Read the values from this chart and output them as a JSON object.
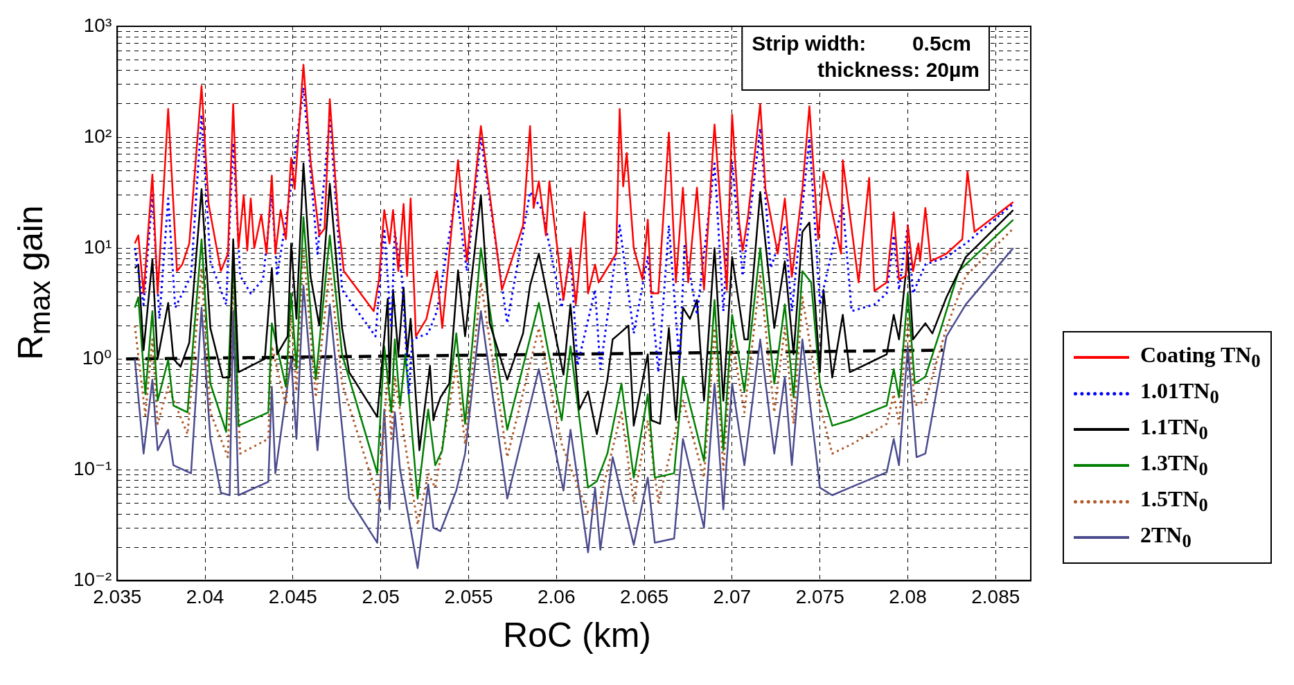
{
  "chart_data": {
    "type": "line",
    "xlabel": "RoC (km)",
    "ylabel": "R$_{max}$ gain",
    "log": "y",
    "grid": true,
    "legend": "right",
    "annotations": [
      "Strip width:        0.5cm",
      "thickness: 20µm"
    ],
    "xlim": [
      2.035,
      2.087
    ],
    "xticks": [
      2.035,
      2.04,
      2.045,
      2.05,
      2.055,
      2.06,
      2.065,
      2.07,
      2.075,
      2.08,
      2.085
    ],
    "ylim": [
      0.01,
      1000
    ],
    "yticks": [
      {
        "value": 0.01,
        "label": "10⁻²"
      },
      {
        "value": 0.02,
        "label": null
      },
      {
        "value": 0.03,
        "label": null
      },
      {
        "value": 0.04,
        "label": null
      },
      {
        "value": 0.05,
        "label": null
      },
      {
        "value": 0.06,
        "label": null
      },
      {
        "value": 0.07,
        "label": null
      },
      {
        "value": 0.08,
        "label": null
      },
      {
        "value": 0.09,
        "label": null
      },
      {
        "value": 0.1,
        "label": "10⁻¹"
      },
      {
        "value": 0.2,
        "label": null
      },
      {
        "value": 0.3,
        "label": null
      },
      {
        "value": 0.4,
        "label": null
      },
      {
        "value": 0.5,
        "label": null
      },
      {
        "value": 0.6,
        "label": null
      },
      {
        "value": 0.7,
        "label": null
      },
      {
        "value": 0.8,
        "label": null
      },
      {
        "value": 0.9,
        "label": null
      },
      {
        "value": 1,
        "label": "10⁰"
      },
      {
        "value": 2,
        "label": null
      },
      {
        "value": 3,
        "label": null
      },
      {
        "value": 4,
        "label": null
      },
      {
        "value": 5,
        "label": null
      },
      {
        "value": 6,
        "label": null
      },
      {
        "value": 7,
        "label": null
      },
      {
        "value": 8,
        "label": null
      },
      {
        "value": 9,
        "label": null
      },
      {
        "value": 10,
        "label": "10¹"
      },
      {
        "value": 20,
        "label": null
      },
      {
        "value": 30,
        "label": null
      },
      {
        "value": 40,
        "label": null
      },
      {
        "value": 50,
        "label": null
      },
      {
        "value": 60,
        "label": null
      },
      {
        "value": 70,
        "label": null
      },
      {
        "value": 80,
        "label": null
      },
      {
        "value": 90,
        "label": null
      },
      {
        "value": 100,
        "label": "10²"
      },
      {
        "value": 200,
        "label": null
      },
      {
        "value": 300,
        "label": null
      },
      {
        "value": 400,
        "label": null
      },
      {
        "value": 500,
        "label": null
      },
      {
        "value": 600,
        "label": null
      },
      {
        "value": 700,
        "label": null
      },
      {
        "value": 800,
        "label": null
      },
      {
        "value": 900,
        "label": null
      },
      {
        "value": 1000,
        "label": "10³"
      }
    ],
    "series": [
      {
        "name": "Coating TN$_{0}$",
        "color": "#ff0000",
        "line_style": "solid",
        "x": [
          2.036,
          2.0362,
          2.0365,
          2.037,
          2.0373,
          2.0379,
          2.0384,
          2.0387,
          2.0391,
          2.0398,
          2.0402,
          2.0409,
          2.0413,
          2.0416,
          2.0419,
          2.0422,
          2.0424,
          2.0426,
          2.0428,
          2.0432,
          2.0435,
          2.0438,
          2.044,
          2.0443,
          2.0446,
          2.0449,
          2.0451,
          2.0456,
          2.046,
          2.0465,
          2.0468,
          2.0471,
          2.0476,
          2.0479,
          2.0496,
          2.0499,
          2.0502,
          2.0505,
          2.0507,
          2.051,
          2.0513,
          2.0515,
          2.0517,
          2.052,
          2.0526,
          2.0532,
          2.0535,
          2.0544,
          2.0549,
          2.0557,
          2.0569,
          2.0581,
          2.0585,
          2.0587,
          2.059,
          2.0594,
          2.0596,
          2.0604,
          2.0608,
          2.0611,
          2.0616,
          2.0618,
          2.0622,
          2.0624,
          2.0634,
          2.0636,
          2.0638,
          2.064,
          2.0644,
          2.0649,
          2.0652,
          2.0654,
          2.0658,
          2.0664,
          2.0668,
          2.0672,
          2.0675,
          2.068,
          2.0684,
          2.069,
          2.0697,
          2.07,
          2.0704,
          2.0706,
          2.0709,
          2.0716,
          2.0719,
          2.0726,
          2.073,
          2.0734,
          2.074,
          2.0744,
          2.0749,
          2.0752,
          2.0762,
          2.0763,
          2.0772,
          2.0778,
          2.0781,
          2.0788,
          2.0792,
          2.0795,
          2.0799,
          2.08,
          2.0803,
          2.0806,
          2.0807,
          2.081,
          2.0813,
          2.0822,
          2.0831,
          2.0834,
          2.0838,
          2.086
        ],
        "values": [
          11,
          13,
          3.9,
          46,
          3.9,
          180,
          6.2,
          7.1,
          11,
          290,
          25,
          6.2,
          8.9,
          200,
          10,
          30,
          9.5,
          28,
          10,
          20,
          8.9,
          45,
          8.9,
          22,
          12,
          65,
          34,
          450,
          62,
          13,
          15,
          220,
          16,
          6.2,
          2.7,
          5.2,
          22,
          11,
          22,
          6.2,
          25,
          5.6,
          28,
          1.6,
          2.3,
          6.2,
          1.9,
          62,
          7.6,
          126,
          4.2,
          16,
          126,
          23,
          40,
          13,
          40,
          3.4,
          10,
          3.1,
          21,
          3.9,
          7.1,
          4.9,
          8.9,
          180,
          36,
          72,
          10,
          5.2,
          18,
          3.9,
          3.9,
          110,
          4.9,
          35,
          4.9,
          35,
          4.2,
          130,
          4.2,
          160,
          17,
          9.5,
          19,
          200,
          34,
          8.9,
          28,
          5.5,
          34,
          190,
          12,
          49,
          8.9,
          62,
          4.9,
          43,
          4.1,
          4.9,
          21,
          5.2,
          5.6,
          16,
          6.2,
          11,
          7.6,
          23,
          7.6,
          8.9,
          12,
          49,
          14,
          26
        ]
      },
      {
        "name": "1.01TN$_{0}$",
        "color": "#0000ff",
        "line_style": "dotted",
        "x": [
          2.036,
          2.0365,
          2.037,
          2.0374,
          2.0379,
          2.0383,
          2.0392,
          2.0398,
          2.0403,
          2.0412,
          2.0416,
          2.042,
          2.0426,
          2.0433,
          2.0438,
          2.0441,
          2.0448,
          2.0456,
          2.0464,
          2.0471,
          2.0478,
          2.0497,
          2.0502,
          2.0506,
          2.0508,
          2.0512,
          2.0516,
          2.0518,
          2.0527,
          2.0532,
          2.0543,
          2.0549,
          2.0557,
          2.0572,
          2.0585,
          2.0592,
          2.0603,
          2.0608,
          2.0612,
          2.0622,
          2.0625,
          2.0636,
          2.0644,
          2.0652,
          2.0658,
          2.0664,
          2.067,
          2.0673,
          2.068,
          2.069,
          2.0695,
          2.07,
          2.0706,
          2.0716,
          2.0722,
          2.073,
          2.0734,
          2.0744,
          2.075,
          2.0763,
          2.0768,
          2.0781,
          2.0788,
          2.0792,
          2.0795,
          2.08,
          2.0803,
          2.081,
          2.0822,
          2.0833,
          2.086
        ],
        "values": [
          10,
          3.1,
          30,
          2.3,
          28,
          2.9,
          5.6,
          160,
          7.6,
          3.1,
          89,
          5.6,
          3.9,
          5.2,
          30,
          5.6,
          28,
          280,
          8.9,
          150,
          4.2,
          1.6,
          15,
          1.9,
          14,
          5.6,
          0.48,
          1.5,
          1.7,
          2.7,
          32,
          6.2,
          98,
          2.1,
          32,
          22,
          2.9,
          8.9,
          0.87,
          4.2,
          0.81,
          16,
          1.7,
          8.3,
          0.76,
          16,
          0.93,
          11,
          2.5,
          58,
          2.7,
          60,
          5.6,
          120,
          6.6,
          16,
          2.7,
          98,
          3.1,
          25,
          2.7,
          3.1,
          3.9,
          13,
          4.2,
          16,
          3.9,
          7.1,
          8.3,
          11,
          25
        ]
      },
      {
        "name": "1.1TN$_{0}$",
        "color": "#000000",
        "line_style": "solid",
        "x": [
          2.036,
          2.0362,
          2.0365,
          2.037,
          2.0373,
          2.0379,
          2.0382,
          2.0386,
          2.0391,
          2.0398,
          2.0403,
          2.041,
          2.0414,
          2.0416,
          2.0419,
          2.0434,
          2.0438,
          2.0441,
          2.0447,
          2.0449,
          2.0452,
          2.0456,
          2.046,
          2.0465,
          2.0471,
          2.0478,
          2.0482,
          2.0498,
          2.0504,
          2.0505,
          2.0507,
          2.051,
          2.0513,
          2.0515,
          2.0517,
          2.0522,
          2.0528,
          2.053,
          2.0531,
          2.0534,
          2.0539,
          2.0544,
          2.0548,
          2.0557,
          2.0562,
          2.0572,
          2.0581,
          2.0585,
          2.059,
          2.0604,
          2.0608,
          2.0613,
          2.0618,
          2.0623,
          2.0629,
          2.0632,
          2.0636,
          2.0641,
          2.0644,
          2.0652,
          2.0654,
          2.0659,
          2.0664,
          2.0668,
          2.0672,
          2.0676,
          2.068,
          2.0684,
          2.069,
          2.0695,
          2.07,
          2.0707,
          2.0709,
          2.0716,
          2.0724,
          2.073,
          2.0735,
          2.074,
          2.0744,
          2.075,
          2.0752,
          2.0757,
          2.0763,
          2.0767,
          2.0788,
          2.0792,
          2.0795,
          2.08,
          2.0803,
          2.081,
          2.0814,
          2.0822,
          2.0833,
          2.086
        ],
        "values": [
          6.6,
          7.1,
          1.2,
          7.9,
          1.0,
          3.2,
          1.0,
          0.85,
          1.4,
          34,
          1.9,
          0.68,
          0.68,
          12,
          0.76,
          1.0,
          6.6,
          1.1,
          1.6,
          11,
          2.3,
          58,
          5.6,
          2,
          38,
          1.9,
          0.76,
          0.3,
          3.5,
          0.6,
          4.2,
          1.1,
          4.4,
          1.1,
          2.3,
          0.15,
          0.87,
          0.28,
          0.33,
          0.45,
          0.6,
          6.3,
          1.6,
          30,
          2.1,
          0.65,
          1.7,
          4.6,
          8.9,
          0.72,
          3.1,
          0.35,
          0.51,
          0.21,
          0.65,
          1.5,
          1.7,
          2,
          0.25,
          1.1,
          0.28,
          0.26,
          1.9,
          0.28,
          2.9,
          2.3,
          3.4,
          0.42,
          10,
          0.42,
          8.3,
          1.5,
          1.5,
          32,
          1.9,
          7.6,
          1.1,
          14,
          17,
          0.76,
          4.2,
          0.68,
          2.5,
          0.76,
          1.1,
          2.5,
          1.5,
          8.9,
          1.5,
          2.1,
          1.7,
          3.6,
          8.3,
          22
        ]
      },
      {
        "name": "1.3TN$_{0}$",
        "color": "#008000",
        "line_style": "solid",
        "x": [
          2.036,
          2.0362,
          2.0366,
          2.037,
          2.0373,
          2.0379,
          2.0382,
          2.039,
          2.0398,
          2.0403,
          2.0412,
          2.0416,
          2.0419,
          2.0436,
          2.0438,
          2.0446,
          2.0449,
          2.0452,
          2.0456,
          2.0463,
          2.0471,
          2.0478,
          2.0498,
          2.0502,
          2.0506,
          2.0508,
          2.0511,
          2.0514,
          2.0521,
          2.0527,
          2.0531,
          2.0535,
          2.0543,
          2.0548,
          2.0557,
          2.0572,
          2.059,
          2.0603,
          2.0608,
          2.0618,
          2.0623,
          2.0629,
          2.0637,
          2.0644,
          2.0652,
          2.0656,
          2.0667,
          2.0672,
          2.0684,
          2.069,
          2.0695,
          2.07,
          2.0707,
          2.0716,
          2.0724,
          2.073,
          2.0735,
          2.074,
          2.0745,
          2.075,
          2.0757,
          2.0767,
          2.0788,
          2.0792,
          2.0795,
          2.08,
          2.0804,
          2.081,
          2.0818,
          2.0829,
          2.086
        ],
        "values": [
          2.9,
          3.6,
          0.48,
          2.7,
          0.42,
          0.98,
          0.38,
          0.33,
          12,
          0.6,
          0.22,
          8.9,
          0.25,
          0.33,
          2.1,
          0.56,
          3.9,
          0.81,
          19,
          0.65,
          13,
          1.1,
          0.093,
          1.3,
          0.33,
          1.5,
          0.38,
          1.1,
          0.055,
          0.35,
          0.11,
          0.15,
          1.7,
          0.26,
          10,
          0.23,
          3.2,
          0.28,
          1.3,
          0.069,
          0.079,
          0.14,
          0.6,
          0.085,
          0.48,
          0.085,
          0.093,
          0.69,
          0.12,
          3.4,
          0.15,
          2.5,
          0.51,
          10,
          0.6,
          3.1,
          0.45,
          6.2,
          4.9,
          0.6,
          0.25,
          0.28,
          0.38,
          0.81,
          0.45,
          3.9,
          0.6,
          0.69,
          1.7,
          6.2,
          18
        ]
      },
      {
        "name": "1.5TN$_{0}$",
        "color": "#b05a2a",
        "line_style": "dotted",
        "x": [
          2.036,
          2.0366,
          2.037,
          2.0373,
          2.0379,
          2.039,
          2.0398,
          2.0403,
          2.0413,
          2.0416,
          2.042,
          2.0436,
          2.0438,
          2.0446,
          2.0449,
          2.0452,
          2.0456,
          2.0463,
          2.0471,
          2.0478,
          2.0499,
          2.0504,
          2.0506,
          2.0508,
          2.0521,
          2.0527,
          2.0531,
          2.0543,
          2.0548,
          2.0557,
          2.0572,
          2.059,
          2.0603,
          2.0618,
          2.0624,
          2.0637,
          2.0644,
          2.0652,
          2.0658,
          2.0672,
          2.0684,
          2.069,
          2.0695,
          2.07,
          2.0707,
          2.0716,
          2.0724,
          2.073,
          2.0735,
          2.074,
          2.075,
          2.0757,
          2.0768,
          2.0788,
          2.0792,
          2.0795,
          2.08,
          2.0804,
          2.081,
          2.0822,
          2.0833,
          2.086
        ],
        "values": [
          2,
          0.31,
          1.5,
          0.26,
          0.56,
          0.21,
          6.6,
          0.33,
          0.13,
          5.6,
          0.14,
          0.19,
          1.3,
          0.38,
          2.5,
          0.51,
          10,
          0.45,
          6.6,
          0.6,
          0.051,
          0.81,
          0.19,
          0.69,
          0.032,
          0.093,
          0.069,
          0.87,
          0.17,
          4.9,
          0.13,
          1.9,
          0.17,
          0.041,
          0.047,
          0.33,
          0.051,
          0.28,
          0.051,
          0.42,
          0.085,
          1.9,
          0.1,
          1.5,
          0.33,
          5.6,
          0.33,
          1.9,
          0.26,
          3.6,
          0.38,
          0.14,
          0.17,
          0.26,
          0.48,
          0.26,
          2.3,
          0.38,
          0.42,
          1.9,
          5.6,
          15
        ]
      },
      {
        "name": "2TN$_{0}$",
        "color": "#4b4b8f",
        "line_style": "solid",
        "x": [
          2.036,
          2.0365,
          2.037,
          2.0373,
          2.0379,
          2.0382,
          2.0392,
          2.0398,
          2.0403,
          2.0409,
          2.0414,
          2.0416,
          2.0419,
          2.0436,
          2.0438,
          2.044,
          2.0449,
          2.0452,
          2.0456,
          2.0464,
          2.0471,
          2.0482,
          2.0498,
          2.0502,
          2.0505,
          2.0508,
          2.0511,
          2.0521,
          2.0527,
          2.053,
          2.0534,
          2.0543,
          2.0548,
          2.0557,
          2.0572,
          2.059,
          2.0604,
          2.0608,
          2.0618,
          2.0622,
          2.0625,
          2.0632,
          2.0644,
          2.0652,
          2.0656,
          2.0667,
          2.0672,
          2.0684,
          2.069,
          2.0695,
          2.07,
          2.0707,
          2.0716,
          2.0724,
          2.073,
          2.0734,
          2.074,
          2.075,
          2.0757,
          2.0767,
          2.0788,
          2.0792,
          2.0795,
          2.08,
          2.0805,
          2.081,
          2.0822,
          2.0833,
          2.086
        ],
        "values": [
          1.0,
          0.14,
          0.65,
          0.15,
          0.23,
          0.11,
          0.093,
          2.9,
          0.19,
          0.062,
          0.059,
          2.7,
          0.059,
          0.078,
          0.56,
          0.093,
          1.0,
          0.19,
          4.6,
          0.15,
          3.1,
          0.055,
          0.022,
          0.35,
          0.044,
          0.33,
          0.1,
          0.013,
          0.074,
          0.03,
          0.028,
          0.065,
          0.14,
          2.7,
          0.055,
          0.81,
          0.065,
          0.23,
          0.018,
          0.069,
          0.019,
          0.13,
          0.021,
          0.085,
          0.022,
          0.024,
          0.19,
          0.03,
          0.6,
          0.044,
          0.6,
          0.11,
          1.5,
          0.14,
          0.69,
          0.11,
          1.5,
          0.069,
          0.059,
          0.069,
          0.095,
          0.19,
          0.11,
          1.3,
          0.13,
          0.14,
          1.6,
          3.1,
          10
        ]
      },
      {
        "color": "#000000",
        "line_style": "dashed",
        "x": [
          2.0355,
          2.082
        ],
        "values": [
          1.0,
          1.2
        ]
      }
    ]
  }
}
